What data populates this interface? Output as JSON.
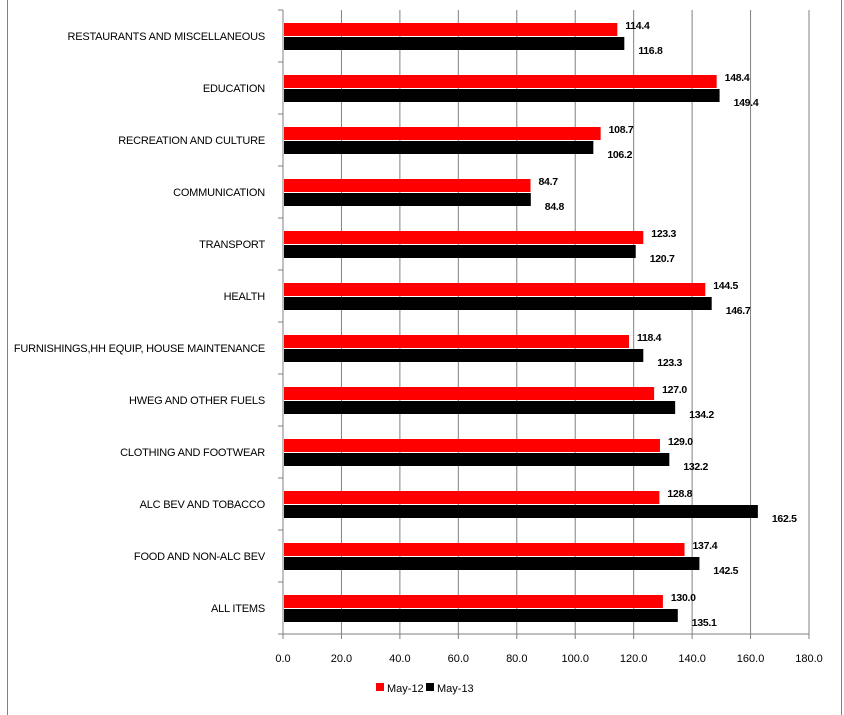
{
  "chart_data": {
    "type": "bar",
    "orientation": "horizontal",
    "categories": [
      "RESTAURANTS AND MISCELLANEOUS",
      "EDUCATION",
      "RECREATION AND CULTURE",
      "COMMUNICATION",
      "TRANSPORT",
      "HEALTH",
      "FURNISHINGS,HH EQUIP, HOUSE MAINTENANCE",
      "HWEG AND OTHER FUELS",
      "CLOTHING AND FOOTWEAR",
      "ALC BEV AND TOBACCO",
      "FOOD AND NON-ALC BEV",
      "ALL ITEMS"
    ],
    "series": [
      {
        "name": "May-12",
        "color": "#ff0000",
        "values": [
          114.4,
          148.4,
          108.7,
          84.7,
          123.3,
          144.5,
          118.4,
          127.0,
          129.0,
          128.8,
          137.4,
          130.0
        ],
        "labels": [
          "114.4",
          "148.4",
          "108.7",
          "84.7",
          "123.3",
          "144.5",
          "118.4",
          "127.0",
          "129.0",
          "128.8",
          "137.4",
          "130.0"
        ]
      },
      {
        "name": "May-13",
        "color": "#000000",
        "values": [
          116.8,
          149.4,
          106.2,
          84.8,
          120.7,
          146.7,
          123.3,
          134.2,
          132.2,
          162.5,
          142.5,
          135.1
        ],
        "labels": [
          "116.8",
          "149.4",
          "106.2",
          "84.8",
          "120.7",
          "146.7",
          "123.3",
          "134.2",
          "132.2",
          "162.5",
          "142.5",
          "135.1"
        ]
      }
    ],
    "xlim": [
      0,
      180
    ],
    "xticks": [
      0,
      20,
      40,
      60,
      80,
      100,
      120,
      140,
      160,
      180
    ],
    "xtick_labels": [
      "0.0",
      "20.0",
      "40.0",
      "60.0",
      "80.0",
      "100.0",
      "120.0",
      "140.0",
      "160.0",
      "180.0"
    ],
    "gridlines": "vertical",
    "legend_position": "bottom",
    "title": "",
    "xlabel": "",
    "ylabel": ""
  }
}
